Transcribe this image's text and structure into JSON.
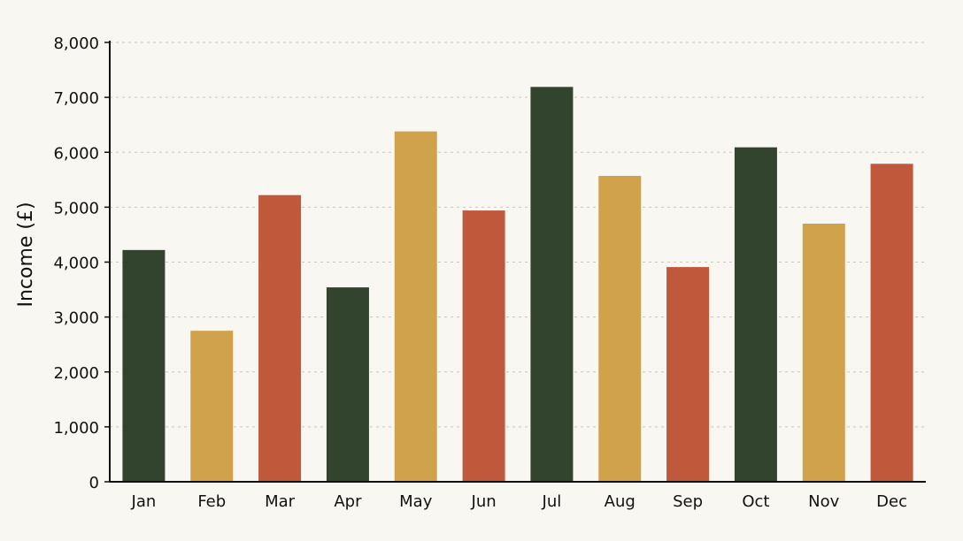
{
  "chart_data": {
    "type": "bar",
    "title": "",
    "xlabel": "",
    "ylabel": "Income (£)",
    "ylim": [
      0,
      8000
    ],
    "yticks": [
      0,
      1000,
      2000,
      3000,
      4000,
      5000,
      6000,
      7000,
      8000
    ],
    "ytick_labels": [
      "0",
      "1,000",
      "2,000",
      "3,000",
      "4,000",
      "5,000",
      "6,000",
      "7,000",
      "8,000"
    ],
    "categories": [
      "Jan",
      "Feb",
      "Mar",
      "Apr",
      "May",
      "Jun",
      "Jul",
      "Aug",
      "Sep",
      "Oct",
      "Nov",
      "Dec"
    ],
    "values": [
      4220,
      2750,
      5220,
      3540,
      6380,
      4940,
      7190,
      5570,
      3910,
      6090,
      4700,
      5790
    ],
    "bar_colors": [
      "#32432e",
      "#d0a24b",
      "#c0583b",
      "#32432e",
      "#d0a24b",
      "#c0583b",
      "#32432e",
      "#d0a24b",
      "#c0583b",
      "#32432e",
      "#d0a24b",
      "#c0583b"
    ],
    "grid": true,
    "legend": "none"
  }
}
